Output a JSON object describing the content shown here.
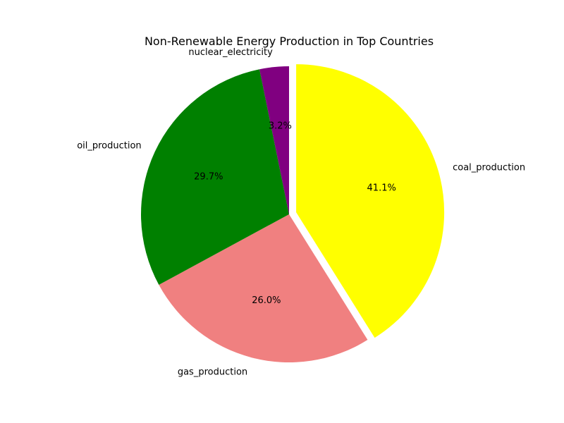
{
  "chart_data": {
    "type": "pie",
    "title": "Non-Renewable Energy Production in Top Countries",
    "start_angle_deg": 90,
    "direction": "clockwise",
    "slices": [
      {
        "label": "coal_production",
        "value": 41.1,
        "pct_label": "41.1%",
        "color": "#ffff00",
        "exploded": true
      },
      {
        "label": "gas_production",
        "value": 26.0,
        "pct_label": "26.0%",
        "color": "#f08080",
        "exploded": false
      },
      {
        "label": "oil_production",
        "value": 29.7,
        "pct_label": "29.7%",
        "color": "#008000",
        "exploded": false
      },
      {
        "label": "nuclear_electricity",
        "value": 3.2,
        "pct_label": "3.2%",
        "color": "#800080",
        "exploded": false
      }
    ]
  }
}
